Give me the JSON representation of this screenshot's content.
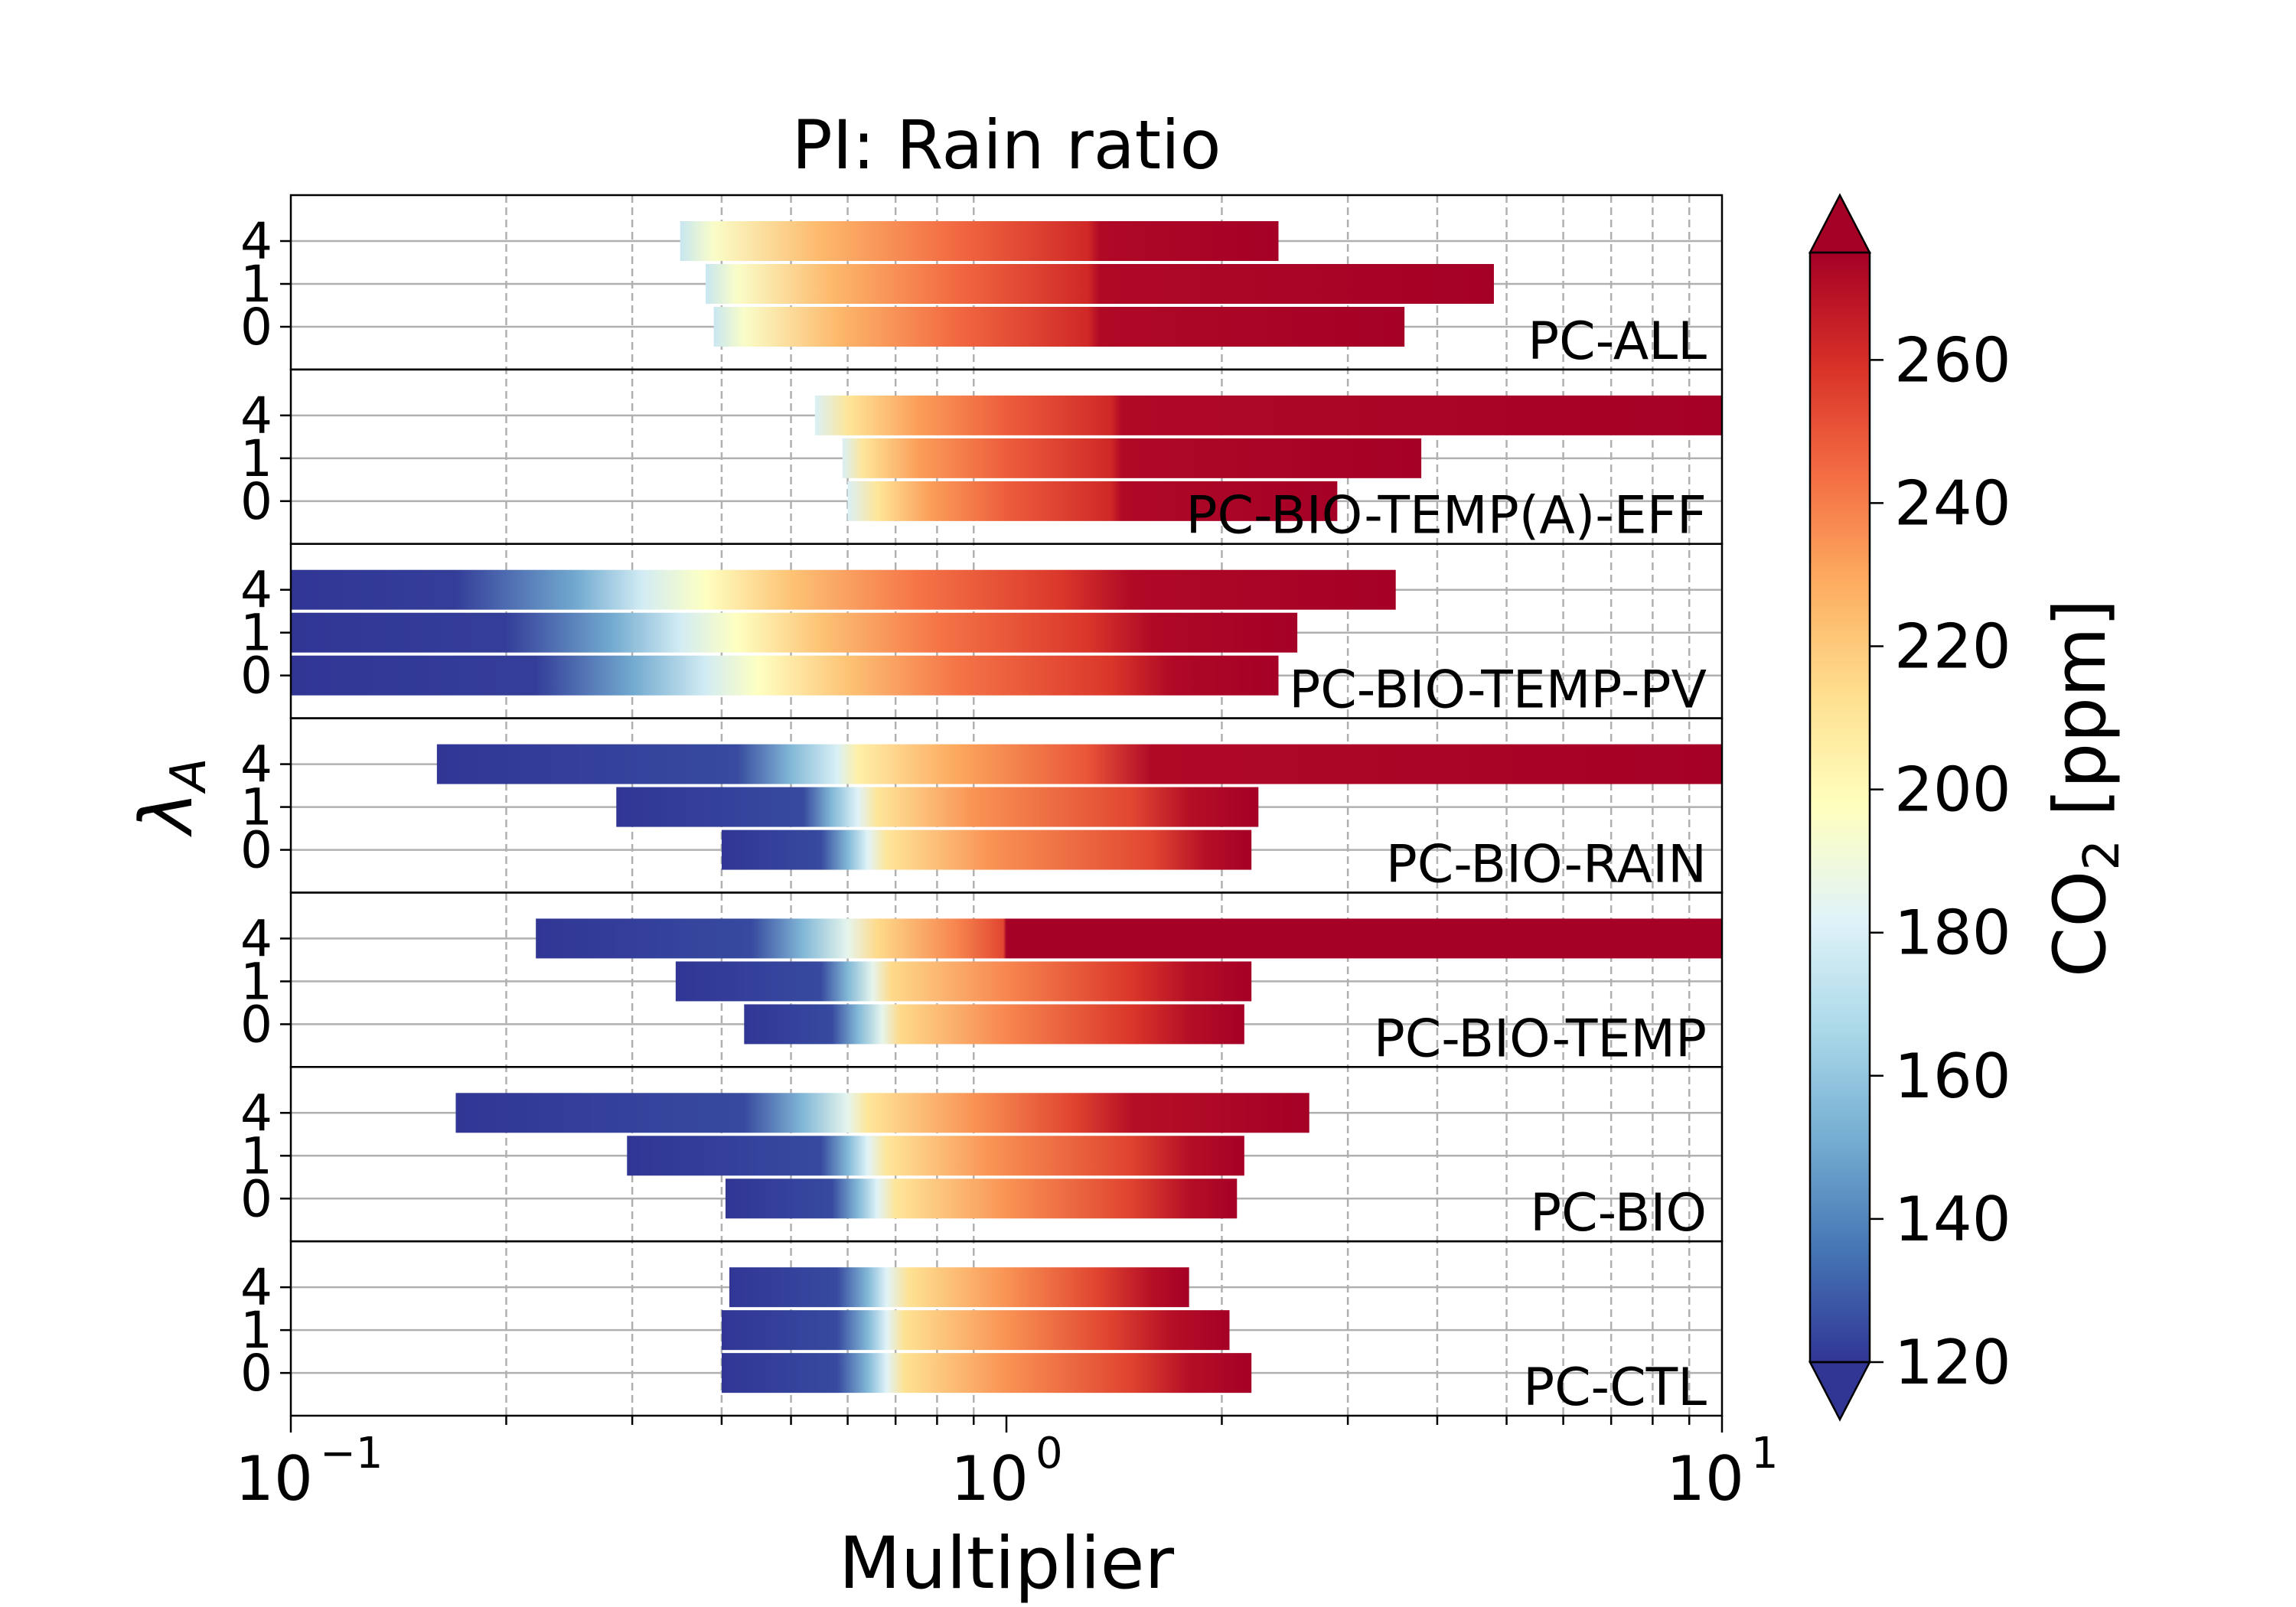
{
  "chart_data": {
    "type": "bar",
    "title": "PI: Rain ratio",
    "xlabel": "Multiplier",
    "ylabel": "λ",
    "ylabel_subscript": "A",
    "x_scale": "log",
    "xlim": [
      0.1,
      10
    ],
    "x_ticks": [
      {
        "value": 0.1,
        "base": "10",
        "exp": "−1"
      },
      {
        "value": 1,
        "base": "10",
        "exp": "0"
      },
      {
        "value": 10,
        "base": "10",
        "exp": "1"
      }
    ],
    "grid": {
      "x_minor": "dashed",
      "y": "solid"
    },
    "colorbar": {
      "label": "CO",
      "label_subscript": "2",
      "label_unit": " [ppm]",
      "range": [
        120,
        275
      ],
      "ticks": [
        "120",
        "140",
        "160",
        "180",
        "200",
        "220",
        "240",
        "260"
      ],
      "tick_values": [
        120,
        140,
        160,
        180,
        200,
        220,
        240,
        260
      ],
      "colors": [
        "#313695",
        "#4575b4",
        "#74add1",
        "#abd9e9",
        "#e0f3f8",
        "#ffffbf",
        "#fee090",
        "#fdae61",
        "#f46d43",
        "#d73027",
        "#a50026"
      ],
      "extend": "both"
    },
    "panels": [
      {
        "name": "PC-ALL",
        "rows": [
          {
            "lambda": "4",
            "min": 0.35,
            "max": 2.4,
            "stops": [
              [
                0.35,
                175
              ],
              [
                0.39,
                195
              ],
              [
                0.55,
                225
              ],
              [
                0.85,
                245
              ],
              [
                1.3,
                262
              ],
              [
                1.35,
                272
              ],
              [
                2.4,
                275
              ]
            ]
          },
          {
            "lambda": "1",
            "min": 0.38,
            "max": 4.8,
            "stops": [
              [
                0.38,
                175
              ],
              [
                0.42,
                195
              ],
              [
                0.57,
                225
              ],
              [
                0.85,
                245
              ],
              [
                1.3,
                262
              ],
              [
                1.35,
                272
              ],
              [
                4.8,
                275
              ]
            ]
          },
          {
            "lambda": "0",
            "min": 0.39,
            "max": 3.6,
            "stops": [
              [
                0.39,
                175
              ],
              [
                0.43,
                195
              ],
              [
                0.58,
                225
              ],
              [
                0.85,
                245
              ],
              [
                1.3,
                262
              ],
              [
                1.35,
                272
              ],
              [
                3.6,
                275
              ]
            ]
          }
        ]
      },
      {
        "name": "PC-BIO-TEMP(A)-EFF",
        "rows": [
          {
            "lambda": "4",
            "min": 0.54,
            "max": 10,
            "stops": [
              [
                0.54,
                180
              ],
              [
                0.6,
                210
              ],
              [
                0.75,
                232
              ],
              [
                1.0,
                248
              ],
              [
                1.4,
                262
              ],
              [
                1.45,
                272
              ],
              [
                10,
                275
              ]
            ]
          },
          {
            "lambda": "1",
            "min": 0.59,
            "max": 3.8,
            "stops": [
              [
                0.59,
                180
              ],
              [
                0.63,
                210
              ],
              [
                0.75,
                232
              ],
              [
                1.0,
                248
              ],
              [
                1.4,
                262
              ],
              [
                1.45,
                272
              ],
              [
                3.8,
                275
              ]
            ]
          },
          {
            "lambda": "0",
            "min": 0.6,
            "max": 2.9,
            "stops": [
              [
                0.6,
                180
              ],
              [
                0.66,
                210
              ],
              [
                0.78,
                232
              ],
              [
                1.0,
                248
              ],
              [
                1.4,
                262
              ],
              [
                1.45,
                272
              ],
              [
                2.9,
                275
              ]
            ]
          }
        ]
      },
      {
        "name": "PC-BIO-TEMP-PV",
        "rows": [
          {
            "lambda": "4",
            "min": 0.1,
            "max": 3.5,
            "stops": [
              [
                0.1,
                120
              ],
              [
                0.17,
                122
              ],
              [
                0.25,
                150
              ],
              [
                0.31,
                178
              ],
              [
                0.38,
                197
              ],
              [
                0.5,
                222
              ],
              [
                0.75,
                242
              ],
              [
                1.2,
                258
              ],
              [
                1.5,
                272
              ],
              [
                3.5,
                275
              ]
            ]
          },
          {
            "lambda": "1",
            "min": 0.1,
            "max": 2.55,
            "stops": [
              [
                0.1,
                120
              ],
              [
                0.2,
                122
              ],
              [
                0.28,
                150
              ],
              [
                0.35,
                178
              ],
              [
                0.42,
                197
              ],
              [
                0.55,
                222
              ],
              [
                0.8,
                242
              ],
              [
                1.3,
                258
              ],
              [
                1.6,
                272
              ],
              [
                2.55,
                275
              ]
            ]
          },
          {
            "lambda": "0",
            "min": 0.1,
            "max": 2.4,
            "stops": [
              [
                0.1,
                120
              ],
              [
                0.22,
                122
              ],
              [
                0.3,
                150
              ],
              [
                0.38,
                178
              ],
              [
                0.45,
                197
              ],
              [
                0.6,
                222
              ],
              [
                0.85,
                242
              ],
              [
                1.4,
                258
              ],
              [
                1.7,
                272
              ],
              [
                2.4,
                275
              ]
            ]
          }
        ]
      },
      {
        "name": "PC-BIO-RAIN",
        "rows": [
          {
            "lambda": "4",
            "min": 0.16,
            "max": 10,
            "stops": [
              [
                0.16,
                120
              ],
              [
                0.42,
                125
              ],
              [
                0.5,
                155
              ],
              [
                0.58,
                180
              ],
              [
                0.62,
                205
              ],
              [
                0.85,
                230
              ],
              [
                1.3,
                250
              ],
              [
                1.6,
                272
              ],
              [
                10,
                275
              ]
            ]
          },
          {
            "lambda": "1",
            "min": 0.285,
            "max": 2.25,
            "stops": [
              [
                0.285,
                120
              ],
              [
                0.52,
                125
              ],
              [
                0.57,
                155
              ],
              [
                0.62,
                182
              ],
              [
                0.66,
                210
              ],
              [
                0.9,
                235
              ],
              [
                1.5,
                254
              ],
              [
                1.8,
                270
              ],
              [
                2.25,
                275
              ]
            ]
          },
          {
            "lambda": "0",
            "min": 0.4,
            "max": 2.2,
            "stops": [
              [
                0.4,
                120
              ],
              [
                0.55,
                125
              ],
              [
                0.6,
                155
              ],
              [
                0.64,
                182
              ],
              [
                0.68,
                210
              ],
              [
                0.95,
                235
              ],
              [
                1.6,
                254
              ],
              [
                1.9,
                270
              ],
              [
                2.2,
                275
              ]
            ]
          }
        ]
      },
      {
        "name": "PC-BIO-TEMP",
        "rows": [
          {
            "lambda": "4",
            "min": 0.22,
            "max": 10,
            "stops": [
              [
                0.22,
                120
              ],
              [
                0.44,
                125
              ],
              [
                0.52,
                155
              ],
              [
                0.6,
                185
              ],
              [
                0.66,
                215
              ],
              [
                0.85,
                238
              ],
              [
                0.99,
                254
              ],
              [
                1.0,
                275
              ],
              [
                10,
                275
              ]
            ]
          },
          {
            "lambda": "1",
            "min": 0.345,
            "max": 2.2,
            "stops": [
              [
                0.345,
                120
              ],
              [
                0.55,
                125
              ],
              [
                0.6,
                155
              ],
              [
                0.65,
                185
              ],
              [
                0.69,
                215
              ],
              [
                1.0,
                238
              ],
              [
                1.5,
                258
              ],
              [
                1.8,
                270
              ],
              [
                2.2,
                275
              ]
            ]
          },
          {
            "lambda": "0",
            "min": 0.43,
            "max": 2.15,
            "stops": [
              [
                0.43,
                120
              ],
              [
                0.57,
                125
              ],
              [
                0.62,
                155
              ],
              [
                0.67,
                185
              ],
              [
                0.71,
                215
              ],
              [
                1.0,
                238
              ],
              [
                1.5,
                258
              ],
              [
                1.8,
                270
              ],
              [
                2.15,
                275
              ]
            ]
          }
        ]
      },
      {
        "name": "PC-BIO",
        "rows": [
          {
            "lambda": "4",
            "min": 0.17,
            "max": 2.65,
            "stops": [
              [
                0.17,
                120
              ],
              [
                0.43,
                125
              ],
              [
                0.52,
                155
              ],
              [
                0.6,
                185
              ],
              [
                0.64,
                210
              ],
              [
                0.9,
                235
              ],
              [
                1.25,
                255
              ],
              [
                1.5,
                270
              ],
              [
                2.65,
                275
              ]
            ]
          },
          {
            "lambda": "1",
            "min": 0.295,
            "max": 2.15,
            "stops": [
              [
                0.295,
                120
              ],
              [
                0.55,
                125
              ],
              [
                0.6,
                155
              ],
              [
                0.64,
                182
              ],
              [
                0.68,
                210
              ],
              [
                0.95,
                235
              ],
              [
                1.5,
                255
              ],
              [
                1.8,
                270
              ],
              [
                2.15,
                275
              ]
            ]
          },
          {
            "lambda": "0",
            "min": 0.405,
            "max": 2.1,
            "stops": [
              [
                0.405,
                120
              ],
              [
                0.57,
                125
              ],
              [
                0.62,
                155
              ],
              [
                0.66,
                182
              ],
              [
                0.7,
                210
              ],
              [
                1.0,
                235
              ],
              [
                1.5,
                255
              ],
              [
                1.8,
                270
              ],
              [
                2.1,
                275
              ]
            ]
          }
        ]
      },
      {
        "name": "PC-CTL",
        "rows": [
          {
            "lambda": "4",
            "min": 0.41,
            "max": 1.8,
            "stops": [
              [
                0.41,
                120
              ],
              [
                0.58,
                125
              ],
              [
                0.64,
                155
              ],
              [
                0.68,
                182
              ],
              [
                0.73,
                212
              ],
              [
                1.0,
                235
              ],
              [
                1.35,
                255
              ],
              [
                1.6,
                270
              ],
              [
                1.8,
                275
              ]
            ]
          },
          {
            "lambda": "1",
            "min": 0.4,
            "max": 2.05,
            "stops": [
              [
                0.4,
                120
              ],
              [
                0.58,
                125
              ],
              [
                0.64,
                155
              ],
              [
                0.68,
                182
              ],
              [
                0.72,
                212
              ],
              [
                1.0,
                235
              ],
              [
                1.4,
                255
              ],
              [
                1.7,
                270
              ],
              [
                2.05,
                275
              ]
            ]
          },
          {
            "lambda": "0",
            "min": 0.4,
            "max": 2.2,
            "stops": [
              [
                0.4,
                120
              ],
              [
                0.58,
                125
              ],
              [
                0.64,
                155
              ],
              [
                0.68,
                182
              ],
              [
                0.72,
                212
              ],
              [
                1.0,
                235
              ],
              [
                1.5,
                255
              ],
              [
                1.8,
                270
              ],
              [
                2.2,
                275
              ]
            ]
          }
        ]
      }
    ]
  }
}
